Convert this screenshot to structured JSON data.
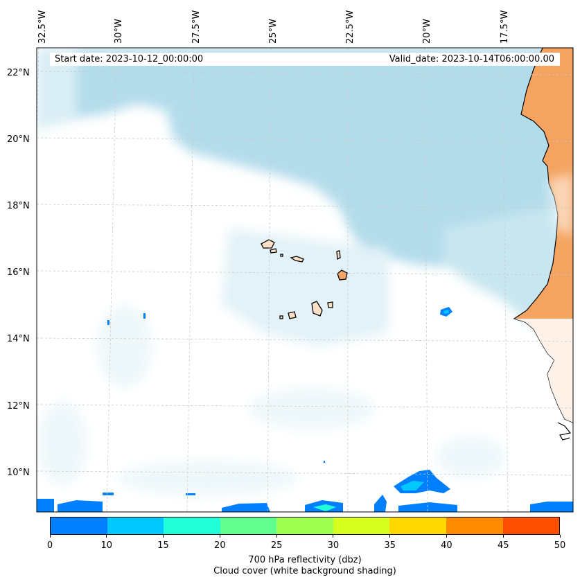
{
  "map": {
    "region": "Eastern tropical Atlantic / Cape Verde",
    "lon_labels": [
      "32.5°W",
      "30°W",
      "27.5°W",
      "25°W",
      "22.5°W",
      "20°W",
      "17.5°W"
    ],
    "lat_labels": [
      "22°N",
      "20°N",
      "18°N",
      "16°N",
      "14°N",
      "12°N",
      "10°N"
    ],
    "colors": {
      "cloud": "#add8e6",
      "land_africa": "#f4a460",
      "islands": "#fde0c5",
      "ocean": "#ffffff",
      "coastline": "#000000",
      "gridline": "#cccccc"
    }
  },
  "info": {
    "start_date": "Start date: 2023-10-12_00:00:00",
    "valid_date": "Valid_date: 2023-10-14T06:00:00.00"
  },
  "colorbar": {
    "colors": [
      "#0080ff",
      "#00c8ff",
      "#20ffd8",
      "#60ff90",
      "#a0ff50",
      "#d8ff20",
      "#ffd800",
      "#ff8c00",
      "#ff5000"
    ],
    "ticks": [
      "0",
      "10",
      "15",
      "20",
      "25",
      "30",
      "35",
      "40",
      "45",
      "50"
    ],
    "title_line1": "700 hPa reflectivity (dbz)",
    "title_line2": "Cloud cover (white background shading)"
  }
}
